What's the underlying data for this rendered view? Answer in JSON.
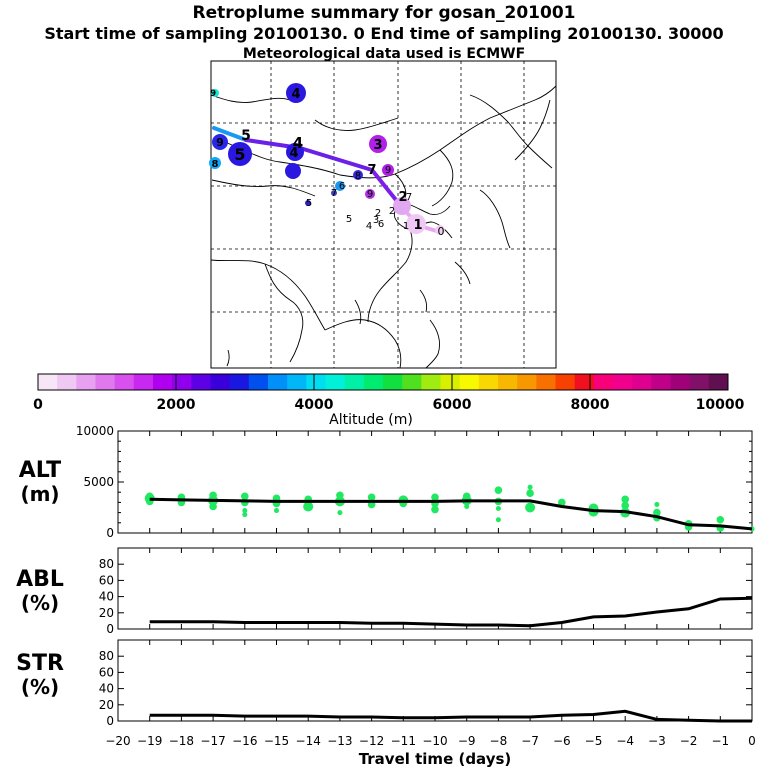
{
  "header": {
    "title": "Retroplume summary for gosan_201001",
    "sampling": "Start time of sampling 20100130.    0     End time of sampling 20100130. 30000",
    "met": "Meteorological data used is ECMWF"
  },
  "colorbar": {
    "ticks": [
      "0",
      "2000",
      "4000",
      "6000",
      "8000",
      "10000"
    ],
    "label": "Altitude  (m)",
    "colors": [
      "#f6e6f8",
      "#f0c8f4",
      "#e8a0f0",
      "#e078ee",
      "#d850ee",
      "#c828f0",
      "#b000f0",
      "#9000ee",
      "#5e00e6",
      "#3a00dc",
      "#1a18e0",
      "#0050f0",
      "#0090f8",
      "#00b8f8",
      "#00dcf0",
      "#00f0d8",
      "#00f0a8",
      "#00ec70",
      "#10e040",
      "#50e020",
      "#a0ec10",
      "#d8f000",
      "#f8f800",
      "#f8d800",
      "#f8b800",
      "#f89800",
      "#f87000",
      "#f84000",
      "#f01020",
      "#f8007a",
      "#f0008c",
      "#e00090",
      "#c00088",
      "#a00078",
      "#801068",
      "#601050"
    ]
  },
  "map": {
    "plume_labels": [
      "1",
      "2",
      "3",
      "4",
      "5",
      "6",
      "7",
      "8",
      "9"
    ],
    "point_labels": [
      "0",
      "1",
      "2",
      "3",
      "4",
      "5",
      "6",
      "7",
      "8",
      "9"
    ]
  },
  "panels": {
    "alt": {
      "label1": "ALT",
      "label2": "(m)"
    },
    "abl": {
      "label1": "ABL",
      "label2": "(%)"
    },
    "str": {
      "label1": "STR",
      "label2": "(%)"
    }
  },
  "xaxis": {
    "label": "Travel time (days)"
  },
  "colors": {
    "points": "#20e860",
    "line": "#000000"
  },
  "chart_data": [
    {
      "type": "scatter",
      "name": "ALT",
      "title": "ALT (m)",
      "xlabel": "Travel time (days)",
      "ylabel": "ALT (m)",
      "xlim": [
        -20,
        0
      ],
      "ylim": [
        0,
        10000
      ],
      "yticks": [
        0,
        5000,
        10000
      ],
      "xticks": [
        -20,
        -19,
        -18,
        -17,
        -16,
        -15,
        -14,
        -13,
        -12,
        -11,
        -10,
        -9,
        -8,
        -7,
        -6,
        -5,
        -4,
        -3,
        -2,
        -1,
        0
      ],
      "line": {
        "x": [
          -19,
          -18,
          -17,
          -16,
          -15,
          -14,
          -13,
          -12,
          -11,
          -10,
          -9,
          -8,
          -7,
          -6,
          -5,
          -4,
          -3,
          -2,
          -1,
          0
        ],
        "y": [
          3300,
          3250,
          3200,
          3150,
          3100,
          3100,
          3100,
          3100,
          3100,
          3100,
          3150,
          3150,
          3150,
          2600,
          2200,
          2100,
          1600,
          800,
          700,
          400
        ]
      },
      "points": [
        {
          "x": -19,
          "y": 3600,
          "s": 2
        },
        {
          "x": -19,
          "y": 3100,
          "s": 2
        },
        {
          "x": -19,
          "y": 3400,
          "s": 3
        },
        {
          "x": -18,
          "y": 3500,
          "s": 2
        },
        {
          "x": -18,
          "y": 3000,
          "s": 2
        },
        {
          "x": -17,
          "y": 3700,
          "s": 2
        },
        {
          "x": -17,
          "y": 3200,
          "s": 3
        },
        {
          "x": -17,
          "y": 2600,
          "s": 2
        },
        {
          "x": -16,
          "y": 3600,
          "s": 2
        },
        {
          "x": -16,
          "y": 3000,
          "s": 2
        },
        {
          "x": -16,
          "y": 2200,
          "s": 1
        },
        {
          "x": -16,
          "y": 1800,
          "s": 1
        },
        {
          "x": -15,
          "y": 3400,
          "s": 2
        },
        {
          "x": -15,
          "y": 2900,
          "s": 2
        },
        {
          "x": -15,
          "y": 2200,
          "s": 1
        },
        {
          "x": -14,
          "y": 3300,
          "s": 2
        },
        {
          "x": -14,
          "y": 2600,
          "s": 3
        },
        {
          "x": -13,
          "y": 3700,
          "s": 2
        },
        {
          "x": -13,
          "y": 3100,
          "s": 3
        },
        {
          "x": -13,
          "y": 2000,
          "s": 1
        },
        {
          "x": -12,
          "y": 3500,
          "s": 2
        },
        {
          "x": -12,
          "y": 2800,
          "s": 2
        },
        {
          "x": -11,
          "y": 3200,
          "s": 3
        },
        {
          "x": -11,
          "y": 2900,
          "s": 2
        },
        {
          "x": -10,
          "y": 3500,
          "s": 2
        },
        {
          "x": -10,
          "y": 2900,
          "s": 2
        },
        {
          "x": -10,
          "y": 2300,
          "s": 2
        },
        {
          "x": -9,
          "y": 3600,
          "s": 2
        },
        {
          "x": -9,
          "y": 3200,
          "s": 3
        },
        {
          "x": -9,
          "y": 2600,
          "s": 1
        },
        {
          "x": -8,
          "y": 4200,
          "s": 2
        },
        {
          "x": -8,
          "y": 3100,
          "s": 2
        },
        {
          "x": -8,
          "y": 2400,
          "s": 1
        },
        {
          "x": -8,
          "y": 1300,
          "s": 1
        },
        {
          "x": -7,
          "y": 4500,
          "s": 1
        },
        {
          "x": -7,
          "y": 3900,
          "s": 2
        },
        {
          "x": -7,
          "y": 2500,
          "s": 3
        },
        {
          "x": -6,
          "y": 3000,
          "s": 2
        },
        {
          "x": -6,
          "y": 2700,
          "s": 1
        },
        {
          "x": -5,
          "y": 2400,
          "s": 3
        },
        {
          "x": -5,
          "y": 2100,
          "s": 3
        },
        {
          "x": -4,
          "y": 3300,
          "s": 2
        },
        {
          "x": -4,
          "y": 2700,
          "s": 2
        },
        {
          "x": -4,
          "y": 2000,
          "s": 3
        },
        {
          "x": -3,
          "y": 2800,
          "s": 1
        },
        {
          "x": -3,
          "y": 2000,
          "s": 2
        },
        {
          "x": -3,
          "y": 1500,
          "s": 2
        },
        {
          "x": -2,
          "y": 900,
          "s": 2
        },
        {
          "x": -2,
          "y": 600,
          "s": 2
        },
        {
          "x": -1,
          "y": 1300,
          "s": 2
        },
        {
          "x": -1,
          "y": 500,
          "s": 2
        },
        {
          "x": 0,
          "y": 400,
          "s": 1
        }
      ]
    },
    {
      "type": "line",
      "name": "ABL",
      "title": "ABL (%)",
      "xlabel": "Travel time (days)",
      "ylabel": "ABL (%)",
      "xlim": [
        -20,
        0
      ],
      "ylim": [
        0,
        100
      ],
      "yticks": [
        0,
        20,
        40,
        60,
        80
      ],
      "x": [
        -19,
        -18,
        -17,
        -16,
        -15,
        -14,
        -13,
        -12,
        -11,
        -10,
        -9,
        -8,
        -7,
        -6,
        -5,
        -4,
        -3,
        -2,
        -1,
        0
      ],
      "values": [
        9,
        9,
        9,
        8,
        8,
        8,
        8,
        7,
        7,
        6,
        5,
        5,
        4,
        8,
        15,
        16,
        21,
        25,
        37,
        38
      ]
    },
    {
      "type": "line",
      "name": "STR",
      "title": "STR (%)",
      "xlabel": "Travel time (days)",
      "ylabel": "STR (%)",
      "xlim": [
        -20,
        0
      ],
      "ylim": [
        0,
        100
      ],
      "yticks": [
        0,
        20,
        40,
        60,
        80
      ],
      "x": [
        -19,
        -18,
        -17,
        -16,
        -15,
        -14,
        -13,
        -12,
        -11,
        -10,
        -9,
        -8,
        -7,
        -6,
        -5,
        -4,
        -3,
        -2,
        -1,
        0
      ],
      "values": [
        7,
        7,
        7,
        6,
        6,
        6,
        5,
        5,
        4,
        4,
        5,
        5,
        5,
        7,
        8,
        12,
        2,
        1,
        0,
        0
      ]
    }
  ]
}
